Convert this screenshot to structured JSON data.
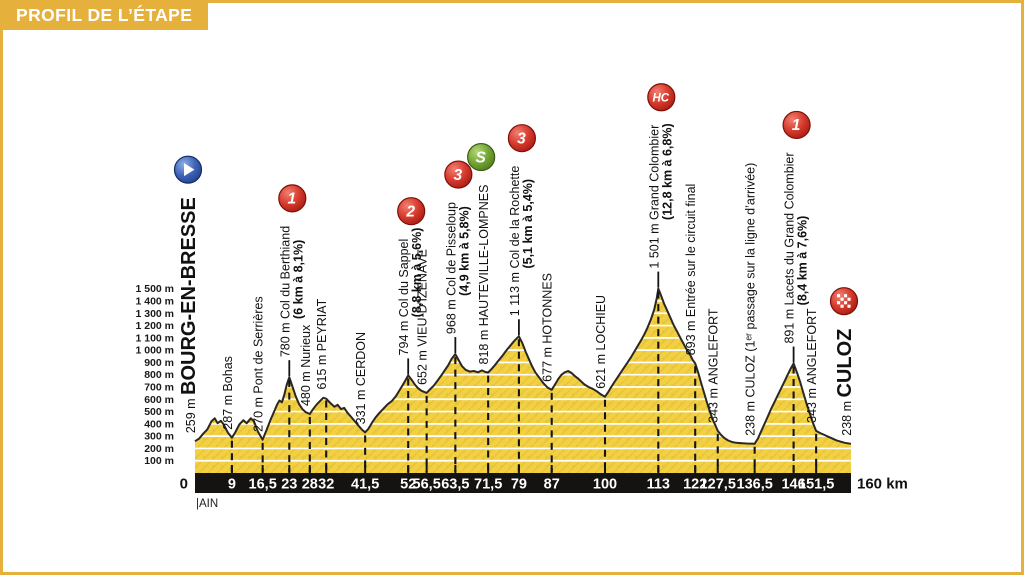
{
  "header": {
    "title": "PROFIL DE L’ÉTAPE"
  },
  "colors": {
    "gold": "#e5b13c",
    "profile_fill": "#f3d042",
    "profile_outline": "#2b2722",
    "axis_bar": "#151311",
    "text": "#111111",
    "gridline": "#ffffff",
    "badge_red": "#c22318",
    "badge_green": "#74a534",
    "badge_blue": "#3f63b5"
  },
  "chart_data": {
    "type": "area",
    "title": "Profil de l'étape",
    "route": "Bourg-en-Bresse → Culoz",
    "distance_km": 160,
    "xlim": [
      0,
      160
    ],
    "ylim": [
      0,
      1550
    ],
    "x_axis_end_label": "160 km",
    "x_axis_zero_label": "0",
    "department_label": "|AIN",
    "grid": "horizontal-100m",
    "y_ticks": [
      {
        "value": 1500,
        "label": "1 500 m"
      },
      {
        "value": 1400,
        "label": "1 400 m"
      },
      {
        "value": 1300,
        "label": "1 300 m"
      },
      {
        "value": 1200,
        "label": "1 200 m"
      },
      {
        "value": 1100,
        "label": "1 100 m"
      },
      {
        "value": 1000,
        "label": "1 000 m"
      },
      {
        "value": 900,
        "label": "900 m"
      },
      {
        "value": 800,
        "label": "800 m"
      },
      {
        "value": 700,
        "label": "700 m"
      },
      {
        "value": 600,
        "label": "600 m"
      },
      {
        "value": 500,
        "label": "500 m"
      },
      {
        "value": 400,
        "label": "400 m"
      },
      {
        "value": 300,
        "label": "300 m"
      },
      {
        "value": 200,
        "label": "200 m"
      },
      {
        "value": 100,
        "label": "100 m"
      }
    ],
    "x_ticks": [
      {
        "km": 0,
        "label": "0"
      },
      {
        "km": 9,
        "label": "9"
      },
      {
        "km": 16.5,
        "label": "16,5"
      },
      {
        "km": 23,
        "label": "23"
      },
      {
        "km": 28,
        "label": "28"
      },
      {
        "km": 32,
        "label": "32"
      },
      {
        "km": 41.5,
        "label": "41,5"
      },
      {
        "km": 52,
        "label": "52"
      },
      {
        "km": 56.5,
        "label": "56,5"
      },
      {
        "km": 63.5,
        "label": "63,5"
      },
      {
        "km": 71.5,
        "label": "71,5"
      },
      {
        "km": 79,
        "label": "79"
      },
      {
        "km": 87,
        "label": "87"
      },
      {
        "km": 100,
        "label": "100"
      },
      {
        "km": 113,
        "label": "113"
      },
      {
        "km": 122,
        "label": "122"
      },
      {
        "km": 127.5,
        "label": "127,5"
      },
      {
        "km": 136.5,
        "label": "136,5"
      },
      {
        "km": 146,
        "label": "146"
      },
      {
        "km": 151.5,
        "label": "151,5"
      },
      {
        "km": 160,
        "label": "160 km"
      }
    ],
    "badge_glyphs": {
      "cat1": "1",
      "cat2": "2",
      "cat3": "3",
      "hc": "HC",
      "sprint": "S",
      "start": "play",
      "finish": "checker"
    },
    "points": [
      {
        "km": 0,
        "elev": 259,
        "elev_label": "259 m",
        "name": "BOURG-EN-BRESSE",
        "style": "start",
        "badge": "start"
      },
      {
        "km": 9,
        "elev": 287,
        "elev_label": "287 m",
        "name": "Bohas"
      },
      {
        "km": 16.5,
        "elev": 270,
        "elev_label": "270 m",
        "name": "Pont de Serrières"
      },
      {
        "km": 23,
        "elev": 780,
        "elev_label": "780 m",
        "name": "Col du Berthiand",
        "gradient": "(6 km à 8,1%)",
        "badge": "cat1",
        "peak": true
      },
      {
        "km": 28,
        "elev": 480,
        "elev_label": "480 m",
        "name": "Nurieux"
      },
      {
        "km": 32,
        "elev": 615,
        "elev_label": "615 m",
        "name": "PEYRIAT"
      },
      {
        "km": 41.5,
        "elev": 331,
        "elev_label": "331 m",
        "name": "CERDON"
      },
      {
        "km": 52,
        "elev": 794,
        "elev_label": "794 m",
        "name": "Col du Sappel",
        "gradient": "(8,8 km à 5,6%)",
        "badge": "cat2",
        "peak": true
      },
      {
        "km": 56.5,
        "elev": 652,
        "elev_label": "652 m",
        "name": "VIEU-D’IZENAVE"
      },
      {
        "km": 63.5,
        "elev": 968,
        "elev_label": "968 m",
        "name": "Col de Pisseloup",
        "gradient": "(4,9 km à 5,8%)",
        "badge": "cat3",
        "peak": true
      },
      {
        "km": 71.5,
        "elev": 818,
        "elev_label": "818 m",
        "name": "HAUTEVILLE-LOMPNES",
        "badge": "sprint"
      },
      {
        "km": 79,
        "elev": 1113,
        "elev_label": "1 113 m",
        "name": "Col de la Rochette",
        "gradient": "(5,1 km à 5,4%)",
        "badge": "cat3",
        "peak": true
      },
      {
        "km": 87,
        "elev": 677,
        "elev_label": "677 m",
        "name": "HOTONNES"
      },
      {
        "km": 100,
        "elev": 621,
        "elev_label": "621 m",
        "name": "LOCHIEU"
      },
      {
        "km": 113,
        "elev": 1501,
        "elev_label": "1 501 m",
        "name": "Grand Colombier",
        "gradient": "(12,8 km à 6,8%)",
        "badge": "hc",
        "peak": true
      },
      {
        "km": 122,
        "elev": 893,
        "elev_label": "893 m",
        "name": "Entrée sur le circuit final"
      },
      {
        "km": 127.5,
        "elev": 343,
        "elev_label": "343 m",
        "name": "ANGLEFORT"
      },
      {
        "km": 136.5,
        "elev": 238,
        "elev_label": "238 m",
        "name": "CULOZ (1ᵉʳ passage sur la ligne d’arrivée)"
      },
      {
        "km": 146,
        "elev": 891,
        "elev_label": "891 m",
        "name": "Lacets du Grand Colombier",
        "gradient": "(8,4 km à 7,6%)",
        "badge": "cat1",
        "peak": true
      },
      {
        "km": 151.5,
        "elev": 343,
        "elev_label": "343 m",
        "name": "ANGLEFORT"
      },
      {
        "km": 160,
        "elev": 238,
        "elev_label": "238 m",
        "name": "CULOZ",
        "style": "finish",
        "badge": "finish"
      }
    ],
    "elevation_profile": [
      [
        0,
        259
      ],
      [
        1,
        280
      ],
      [
        2,
        320
      ],
      [
        3,
        355
      ],
      [
        4,
        420
      ],
      [
        4.8,
        445
      ],
      [
        5.5,
        405
      ],
      [
        6.3,
        425
      ],
      [
        7,
        395
      ],
      [
        8,
        330
      ],
      [
        9,
        287
      ],
      [
        9.8,
        330
      ],
      [
        10.8,
        395
      ],
      [
        11.8,
        430
      ],
      [
        12.6,
        405
      ],
      [
        13.6,
        445
      ],
      [
        14.4,
        420
      ],
      [
        15.3,
        340
      ],
      [
        16.5,
        270
      ],
      [
        17.5,
        355
      ],
      [
        18.5,
        440
      ],
      [
        19.3,
        500
      ],
      [
        20,
        555
      ],
      [
        20.6,
        590
      ],
      [
        21.2,
        575
      ],
      [
        21.8,
        640
      ],
      [
        22.4,
        720
      ],
      [
        23,
        780
      ],
      [
        23.8,
        700
      ],
      [
        24.6,
        620
      ],
      [
        25.4,
        560
      ],
      [
        26.2,
        520
      ],
      [
        27,
        495
      ],
      [
        28,
        480
      ],
      [
        28.8,
        520
      ],
      [
        29.6,
        555
      ],
      [
        30.5,
        585
      ],
      [
        31.3,
        612
      ],
      [
        32,
        605
      ],
      [
        33,
        570
      ],
      [
        34,
        540
      ],
      [
        34.8,
        555
      ],
      [
        35.6,
        520
      ],
      [
        36.4,
        530
      ],
      [
        37.2,
        490
      ],
      [
        38,
        460
      ],
      [
        39,
        420
      ],
      [
        40,
        380
      ],
      [
        40.8,
        350
      ],
      [
        41.5,
        331
      ],
      [
        42.3,
        360
      ],
      [
        43.2,
        410
      ],
      [
        44,
        450
      ],
      [
        45,
        490
      ],
      [
        46,
        525
      ],
      [
        47,
        560
      ],
      [
        48,
        585
      ],
      [
        49,
        625
      ],
      [
        50,
        680
      ],
      [
        51,
        735
      ],
      [
        52,
        794
      ],
      [
        52.8,
        760
      ],
      [
        53.6,
        720
      ],
      [
        54.4,
        690
      ],
      [
        55.2,
        670
      ],
      [
        56.5,
        652
      ],
      [
        57.3,
        680
      ],
      [
        58.2,
        710
      ],
      [
        59,
        745
      ],
      [
        60,
        790
      ],
      [
        61,
        840
      ],
      [
        61.8,
        880
      ],
      [
        62.6,
        930
      ],
      [
        63.5,
        968
      ],
      [
        64.3,
        920
      ],
      [
        65.1,
        870
      ],
      [
        66,
        840
      ],
      [
        67,
        825
      ],
      [
        68,
        830
      ],
      [
        69,
        820
      ],
      [
        70,
        835
      ],
      [
        70.8,
        822
      ],
      [
        71.5,
        818
      ],
      [
        72.3,
        845
      ],
      [
        73.2,
        880
      ],
      [
        74,
        915
      ],
      [
        75,
        955
      ],
      [
        76,
        1000
      ],
      [
        77,
        1040
      ],
      [
        78,
        1080
      ],
      [
        79,
        1113
      ],
      [
        79.8,
        1060
      ],
      [
        80.6,
        990
      ],
      [
        81.4,
        930
      ],
      [
        82.2,
        870
      ],
      [
        83,
        820
      ],
      [
        84,
        775
      ],
      [
        85,
        730
      ],
      [
        86,
        695
      ],
      [
        87,
        677
      ],
      [
        87.8,
        720
      ],
      [
        88.6,
        765
      ],
      [
        89.4,
        800
      ],
      [
        90.2,
        820
      ],
      [
        91,
        830
      ],
      [
        91.8,
        815
      ],
      [
        92.6,
        790
      ],
      [
        93.4,
        770
      ],
      [
        94.2,
        745
      ],
      [
        95,
        720
      ],
      [
        96,
        700
      ],
      [
        97,
        685
      ],
      [
        98,
        665
      ],
      [
        99,
        640
      ],
      [
        100,
        621
      ],
      [
        100.8,
        660
      ],
      [
        101.6,
        705
      ],
      [
        102.4,
        745
      ],
      [
        103.2,
        785
      ],
      [
        104,
        825
      ],
      [
        104.8,
        865
      ],
      [
        105.6,
        905
      ],
      [
        106.4,
        945
      ],
      [
        107.2,
        990
      ],
      [
        108,
        1035
      ],
      [
        108.8,
        1080
      ],
      [
        109.6,
        1130
      ],
      [
        110.4,
        1185
      ],
      [
        111.2,
        1250
      ],
      [
        112,
        1330
      ],
      [
        112.6,
        1420
      ],
      [
        113,
        1501
      ],
      [
        113.6,
        1450
      ],
      [
        114.4,
        1380
      ],
      [
        115.2,
        1320
      ],
      [
        116,
        1260
      ],
      [
        116.8,
        1200
      ],
      [
        117.6,
        1150
      ],
      [
        118.4,
        1100
      ],
      [
        119.2,
        1050
      ],
      [
        120,
        1000
      ],
      [
        120.8,
        960
      ],
      [
        121.4,
        920
      ],
      [
        122,
        893
      ],
      [
        122.7,
        820
      ],
      [
        123.4,
        740
      ],
      [
        124.1,
        660
      ],
      [
        124.8,
        580
      ],
      [
        125.5,
        510
      ],
      [
        126.2,
        440
      ],
      [
        126.9,
        390
      ],
      [
        127.5,
        343
      ],
      [
        128.3,
        310
      ],
      [
        129.1,
        285
      ],
      [
        130,
        265
      ],
      [
        131,
        252
      ],
      [
        132,
        246
      ],
      [
        133,
        243
      ],
      [
        134.5,
        240
      ],
      [
        136.5,
        238
      ],
      [
        137.3,
        280
      ],
      [
        138.1,
        340
      ],
      [
        138.9,
        400
      ],
      [
        139.7,
        460
      ],
      [
        140.5,
        520
      ],
      [
        141.3,
        575
      ],
      [
        142.1,
        630
      ],
      [
        142.9,
        685
      ],
      [
        143.7,
        740
      ],
      [
        144.5,
        795
      ],
      [
        145.3,
        850
      ],
      [
        146,
        891
      ],
      [
        146.8,
        820
      ],
      [
        147.6,
        740
      ],
      [
        148.4,
        650
      ],
      [
        149.2,
        560
      ],
      [
        150,
        480
      ],
      [
        150.8,
        400
      ],
      [
        151.5,
        343
      ],
      [
        152.5,
        325
      ],
      [
        153.5,
        310
      ],
      [
        154.5,
        295
      ],
      [
        155.5,
        280
      ],
      [
        156.5,
        265
      ],
      [
        157.5,
        255
      ],
      [
        158.5,
        246
      ],
      [
        160,
        238
      ]
    ]
  }
}
